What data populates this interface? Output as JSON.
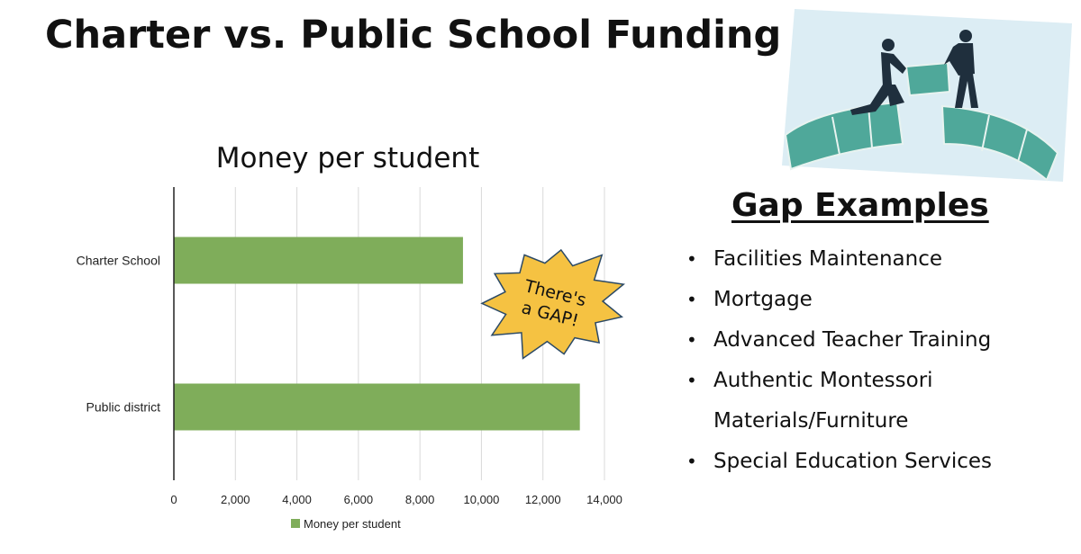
{
  "slide": {
    "title": "Charter vs. Public School Funding"
  },
  "chart_data": {
    "type": "bar",
    "orientation": "horizontal",
    "title": "Money per student",
    "categories": [
      "Charter School",
      "Public district"
    ],
    "series": [
      {
        "name": "Money per student",
        "values": [
          9400,
          13200
        ],
        "color": "#7fad5a"
      }
    ],
    "xlim": [
      0,
      14000
    ],
    "x_ticks": [
      0,
      2000,
      4000,
      6000,
      8000,
      10000,
      12000,
      14000
    ],
    "x_tick_labels": [
      "0",
      "2,000",
      "4,000",
      "6,000",
      "8,000",
      "10,000",
      "12,000",
      "14,000"
    ],
    "grid": true,
    "legend": "bottom",
    "annotation": {
      "lines": [
        "There's",
        "a GAP!"
      ],
      "color": "#f5c242"
    }
  },
  "gap_examples": {
    "heading": "Gap Examples",
    "items": [
      {
        "lines": [
          "Facilities Maintenance"
        ]
      },
      {
        "lines": [
          "Mortgage"
        ]
      },
      {
        "lines": [
          "Advanced Teacher Training"
        ]
      },
      {
        "lines": [
          "Authentic Montessori",
          "Materials/Furniture"
        ]
      },
      {
        "lines": [
          "Special Education Services"
        ]
      }
    ]
  },
  "illustration": {
    "icon": "bridge-gap-businessmen-illustration",
    "colors": {
      "bridge": "#4fa89a",
      "sky": "#d8ecf4",
      "suit": "#1f2f3d"
    }
  }
}
